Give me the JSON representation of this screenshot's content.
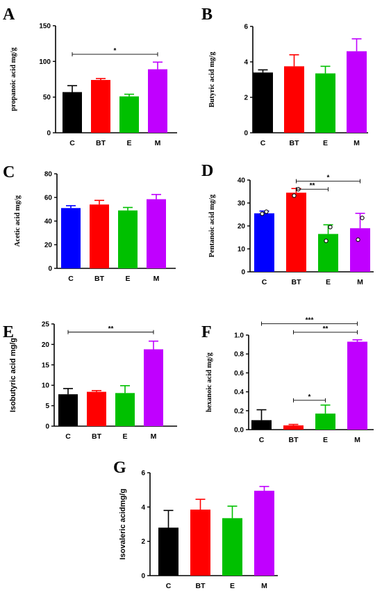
{
  "colors": {
    "C": "#000000",
    "C_blue": "#0000ff",
    "BT": "#ff0000",
    "E": "#00c000",
    "M": "#c000ff"
  },
  "chart_data": [
    {
      "panel": "A",
      "type": "bar",
      "categories": [
        "C",
        "BT",
        "E",
        "M"
      ],
      "values": [
        57,
        74,
        51,
        89
      ],
      "errors": [
        9,
        2,
        3,
        10
      ],
      "ylabel": "propanoic acid mg/g",
      "ylim": [
        0,
        150
      ],
      "yticks": [
        0,
        50,
        100,
        150
      ],
      "color_scheme": [
        "C",
        "BT",
        "E",
        "M"
      ],
      "significance": [
        {
          "from": 0,
          "to": 3,
          "y": 110,
          "label": "*"
        }
      ],
      "points": []
    },
    {
      "panel": "B",
      "type": "bar",
      "categories": [
        "C",
        "BT",
        "E",
        "M"
      ],
      "values": [
        3.4,
        3.75,
        3.35,
        4.6
      ],
      "errors": [
        0.15,
        0.65,
        0.4,
        0.7
      ],
      "ylabel": "Butyric acid mg/g",
      "ylim": [
        0,
        6
      ],
      "yticks": [
        0,
        2,
        4,
        6
      ],
      "color_scheme": [
        "C",
        "BT",
        "E",
        "M"
      ],
      "significance": [],
      "points": []
    },
    {
      "panel": "C",
      "type": "bar",
      "categories": [
        "C",
        "BT",
        "E",
        "M"
      ],
      "values": [
        51,
        54,
        49,
        58.5
      ],
      "errors": [
        2,
        3.5,
        2.5,
        4
      ],
      "ylabel": "Acetic acid mg/g",
      "ylim": [
        0,
        80
      ],
      "yticks": [
        0,
        20,
        40,
        60,
        80
      ],
      "color_scheme": [
        "C_blue",
        "BT",
        "E",
        "M"
      ],
      "significance": [],
      "points": []
    },
    {
      "panel": "D",
      "type": "bar",
      "categories": [
        "C",
        "BT",
        "E",
        "M"
      ],
      "values": [
        25.5,
        34.5,
        16.5,
        19
      ],
      "errors": [
        1,
        1.8,
        4,
        6.5
      ],
      "ylabel": "Pentanoic acid mg/g",
      "ylim": [
        0,
        40
      ],
      "yticks": [
        0,
        10,
        20,
        30,
        40
      ],
      "color_scheme": [
        "C_blue",
        "BT",
        "E",
        "M"
      ],
      "significance": [
        {
          "from": 1,
          "to": 2,
          "y": 36,
          "label": "**"
        },
        {
          "from": 1,
          "to": 3,
          "y": 39.5,
          "label": "*"
        }
      ],
      "points": [
        [
          0,
          25.3
        ],
        [
          0,
          26.2
        ],
        [
          1,
          33.2
        ],
        [
          1,
          36
        ],
        [
          2,
          13.5
        ],
        [
          2,
          19.5
        ],
        [
          3,
          14
        ],
        [
          3,
          23.5
        ]
      ]
    },
    {
      "panel": "E",
      "type": "bar",
      "categories": [
        "C",
        "BT",
        "E",
        "M"
      ],
      "values": [
        7.8,
        8.4,
        8.1,
        18.8
      ],
      "errors": [
        1.4,
        0.3,
        1.8,
        2
      ],
      "ylabel": "Isobutyric acid mg/g",
      "ylim": [
        0,
        25
      ],
      "yticks": [
        0,
        5,
        10,
        15,
        20,
        25
      ],
      "color_scheme": [
        "C",
        "BT",
        "E",
        "M"
      ],
      "significance": [
        {
          "from": 0,
          "to": 3,
          "y": 23,
          "label": "**"
        }
      ],
      "points": []
    },
    {
      "panel": "F",
      "type": "bar",
      "categories": [
        "C",
        "BT",
        "E",
        "M"
      ],
      "values": [
        0.1,
        0.045,
        0.17,
        0.93
      ],
      "errors": [
        0.11,
        0.01,
        0.09,
        0.02
      ],
      "ylabel": "hexanoic acid mg/g",
      "ylim": [
        0,
        1.0
      ],
      "yticks": [
        0.0,
        0.2,
        0.4,
        0.6,
        0.8,
        1.0
      ],
      "ytick_labels": [
        "0.0",
        "0.2",
        "0.4",
        "0.6",
        "0.8",
        "1.0"
      ],
      "color_scheme": [
        "C",
        "BT",
        "E",
        "M"
      ],
      "significance": [
        {
          "from": 1,
          "to": 2,
          "y": 0.31,
          "label": "*"
        },
        {
          "from": 1,
          "to": 3,
          "y": 1.03,
          "label": "**"
        },
        {
          "from": 0,
          "to": 3,
          "y": 1.12,
          "label": "***"
        }
      ],
      "points": []
    },
    {
      "panel": "G",
      "type": "bar",
      "categories": [
        "C",
        "BT",
        "E",
        "M"
      ],
      "values": [
        2.8,
        3.85,
        3.35,
        4.95
      ],
      "errors": [
        1.0,
        0.6,
        0.7,
        0.25
      ],
      "ylabel": "Isovaleric acidmg/g",
      "ylim": [
        0,
        6
      ],
      "yticks": [
        0,
        2,
        4,
        6
      ],
      "color_scheme": [
        "C",
        "BT",
        "E",
        "M"
      ],
      "significance": [],
      "points": []
    }
  ]
}
